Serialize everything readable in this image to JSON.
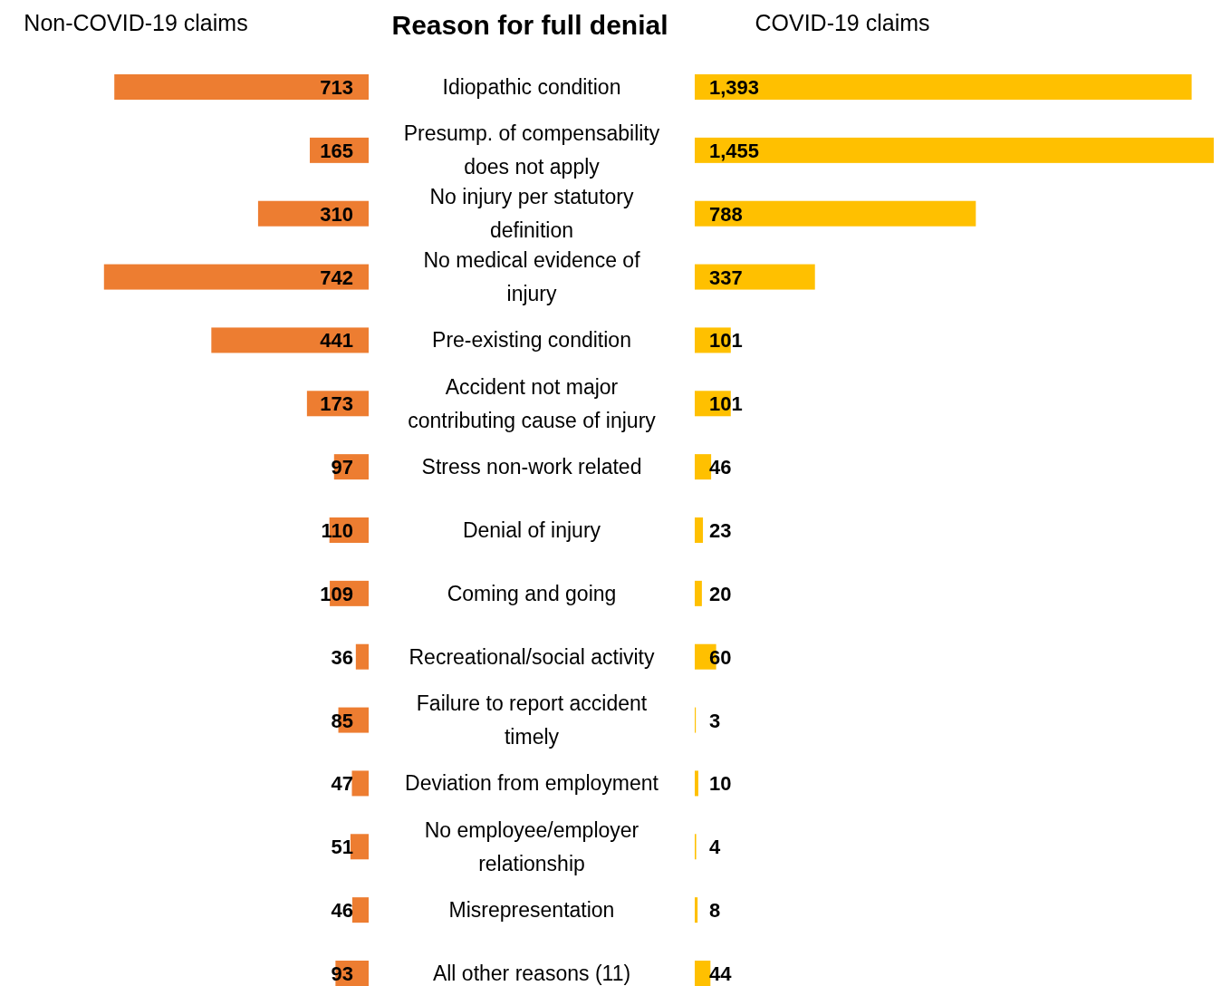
{
  "chart_data": [
    {
      "type": "bar",
      "orientation": "horizontal",
      "title": "Non-COVID-19 claims",
      "ylabel": "Reason for full denial",
      "data_labels": true,
      "color": "#ed7d31",
      "categories": [
        "Idiopathic condition",
        "Presump. of compensability does not apply",
        "No injury per statutory definition",
        "No medical evidence of injury",
        "Pre-existing condition",
        "Accident not major contributing cause of injury",
        "Stress non-work related",
        "Denial of injury",
        "Coming and going",
        "Recreational/social activity",
        "Failure to report accident timely",
        "Deviation from employment",
        "No employee/employer relationship",
        "Misrepresentation",
        "All other reasons (11)"
      ],
      "values": [
        713,
        165,
        310,
        742,
        441,
        173,
        97,
        110,
        109,
        36,
        85,
        47,
        51,
        46,
        93
      ]
    },
    {
      "type": "bar",
      "orientation": "horizontal",
      "title": "COVID-19 claims",
      "color": "#ffc000",
      "value_labels": [
        "1,393",
        "1,455",
        "788",
        "337",
        "101",
        "101",
        "46",
        "23",
        "20",
        "60",
        "3",
        "10",
        "4",
        "8",
        "44"
      ],
      "categories": [
        null,
        null,
        null,
        null,
        null,
        null,
        null,
        null,
        null,
        null,
        null,
        null,
        null,
        null,
        null
      ],
      "values": [
        1393,
        1455,
        788,
        337,
        101,
        101,
        46,
        23,
        20,
        60,
        3,
        10,
        4,
        8,
        44
      ]
    }
  ]
}
